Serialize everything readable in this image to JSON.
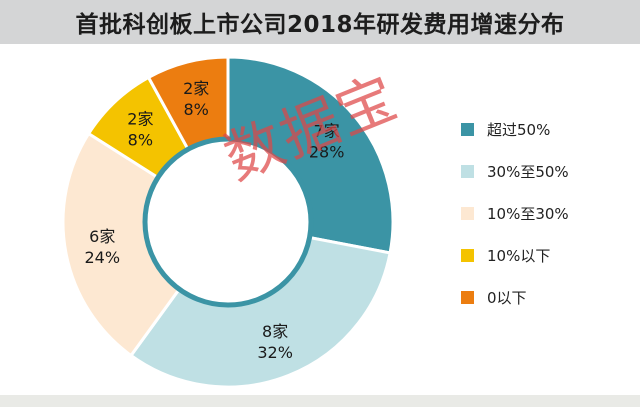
{
  "chart_data": {
    "type": "pie",
    "title": "首批科创板上市公司2018年研发费用增速分布",
    "categories": [
      "超过50%",
      "30%至50%",
      "10%至30%",
      "10%以下",
      "0以下"
    ],
    "counts": [
      7,
      8,
      6,
      2,
      2
    ],
    "count_labels": [
      "7家",
      "8家",
      "6家",
      "2家",
      "2家"
    ],
    "values": [
      28,
      32,
      24,
      8,
      8
    ],
    "percent_labels": [
      "28%",
      "32%",
      "24%",
      "8%",
      "8%"
    ],
    "colors": [
      "#3b94a5",
      "#bfe0e4",
      "#fde8d2",
      "#f4c300",
      "#ec7d10"
    ],
    "donut": true,
    "legend_position": "right"
  },
  "watermark": "数据宝"
}
